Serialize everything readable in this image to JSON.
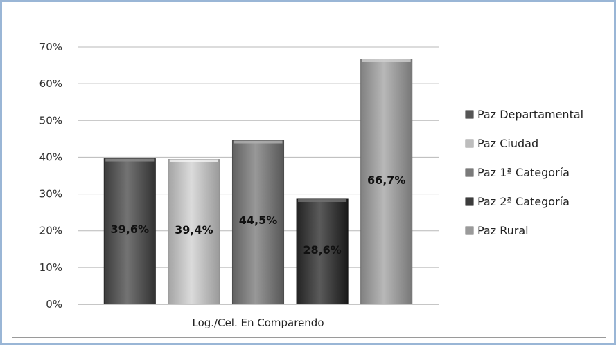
{
  "chart_data": {
    "type": "bar",
    "title": "",
    "xlabel": "Log./Cel. En Comparendo",
    "ylabel": "",
    "ylim": [
      0,
      70
    ],
    "yticks": [
      "0%",
      "10%",
      "20%",
      "30%",
      "40%",
      "50%",
      "60%",
      "70%"
    ],
    "grid": true,
    "legend_position": "right",
    "series": [
      {
        "name": "Paz Departamental",
        "value": 39.6,
        "label": "39,6%",
        "color": "#555555"
      },
      {
        "name": "Paz Ciudad",
        "value": 39.4,
        "label": "39,4%",
        "color": "#bdbdbd"
      },
      {
        "name": "Paz 1ª Categoría",
        "value": 44.5,
        "label": "44,5%",
        "color": "#7a7a7a"
      },
      {
        "name": "Paz 2ª Categoría",
        "value": 28.6,
        "label": "28,6%",
        "color": "#3c3c3c"
      },
      {
        "name": "Paz Rural",
        "value": 66.7,
        "label": "66,7%",
        "color": "#9a9a9a"
      }
    ]
  }
}
